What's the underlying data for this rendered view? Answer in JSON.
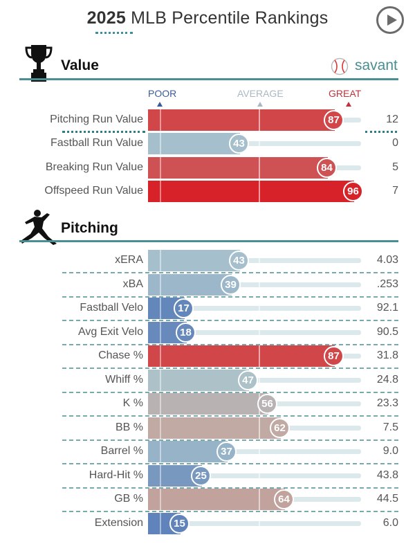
{
  "header": {
    "title_year": "2025",
    "title_rest": " MLB Percentile Rankings",
    "play_button": "play"
  },
  "scale": {
    "poor": "POOR",
    "average": "AVERAGE",
    "great": "GREAT"
  },
  "logo": {
    "text": "savant",
    "icon": "baseball-icon"
  },
  "colors": {
    "section_rule": "#4a8e92",
    "great": "#d62828",
    "poor": "#3a62b0",
    "average": "#b9b9b9"
  },
  "chart_data": {
    "type": "bar",
    "title": "2025 MLB Percentile Rankings",
    "xlim": [
      0,
      100
    ],
    "sections": [
      {
        "name": "Value",
        "icon": "trophy-icon",
        "metrics": [
          {
            "label": "Pitching Run Value",
            "percentile": 87,
            "value": "12"
          },
          {
            "label": "Fastball Run Value",
            "percentile": 43,
            "value": "0"
          },
          {
            "label": "Breaking Run Value",
            "percentile": 84,
            "value": "5"
          },
          {
            "label": "Offspeed Run Value",
            "percentile": 96,
            "value": "7"
          }
        ]
      },
      {
        "name": "Pitching",
        "icon": "pitcher-icon",
        "metrics": [
          {
            "label": "xERA",
            "percentile": 43,
            "value": "4.03"
          },
          {
            "label": "xBA",
            "percentile": 39,
            "value": ".253"
          },
          {
            "label": "Fastball Velo",
            "percentile": 17,
            "value": "92.1"
          },
          {
            "label": "Avg Exit Velo",
            "percentile": 18,
            "value": "90.5"
          },
          {
            "label": "Chase %",
            "percentile": 87,
            "value": "31.8"
          },
          {
            "label": "Whiff %",
            "percentile": 47,
            "value": "24.8"
          },
          {
            "label": "K %",
            "percentile": 56,
            "value": "23.3"
          },
          {
            "label": "BB %",
            "percentile": 62,
            "value": "7.5"
          },
          {
            "label": "Barrel %",
            "percentile": 37,
            "value": "9.0"
          },
          {
            "label": "Hard-Hit %",
            "percentile": 25,
            "value": "43.8"
          },
          {
            "label": "GB %",
            "percentile": 64,
            "value": "44.5"
          },
          {
            "label": "Extension",
            "percentile": 15,
            "value": "6.0"
          }
        ]
      }
    ]
  }
}
